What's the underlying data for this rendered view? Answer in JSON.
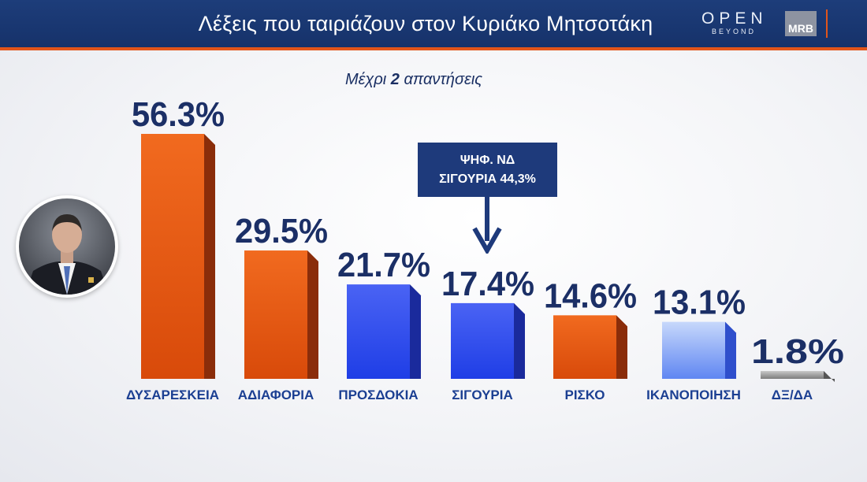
{
  "header": {
    "title": "Λέξεις που ταιριάζουν στον Κυριάκο Μητσοτάκη",
    "logo_open": "OPEN",
    "logo_open_sub": "BEYOND",
    "logo_mrb": "MRB"
  },
  "subtitle": {
    "prefix": "Μέχρι ",
    "number": "2",
    "suffix": " απαντήσεις"
  },
  "callout": {
    "line1": "ΨΗΦ. ΝΔ",
    "line2": "ΣΙΓΟΥΡΙΑ 44,3%"
  },
  "colors": {
    "header_bg": "#1d3d7a",
    "accent_orange": "#e2551a",
    "bar_orange": "#e0560f",
    "bar_blue": "#2f4ff0",
    "bar_lightblue": "#8fb0f5",
    "bar_grey": "#8a8a8a",
    "text_navy": "#1b2f66"
  },
  "chart_data": {
    "type": "bar",
    "categories": [
      "ΔΥΣΑΡΕΣΚΕΙΑ",
      "ΑΔΙΑΦΟΡΙΑ",
      "ΠΡΟΣΔΟΚΙΑ",
      "ΣΙΓΟΥΡΙΑ",
      "ΡΙΣΚΟ",
      "ΙΚΑΝΟΠΟΙΗΣΗ",
      "ΔΞ/ΔΑ"
    ],
    "values": [
      56.3,
      29.5,
      21.7,
      17.4,
      14.6,
      13.1,
      1.8
    ],
    "value_labels": [
      "56.3%",
      "29.5%",
      "21.7%",
      "17.4%",
      "14.6%",
      "13.1%",
      "1.8%"
    ],
    "bar_colors": [
      "orange",
      "orange",
      "blue",
      "blue",
      "orange",
      "lightblue",
      "grey"
    ],
    "title": "Λέξεις που ταιριάζουν στον Κυριάκο Μητσοτάκη",
    "ylim": [
      0,
      56.3
    ],
    "grid": false,
    "legend": "none"
  }
}
